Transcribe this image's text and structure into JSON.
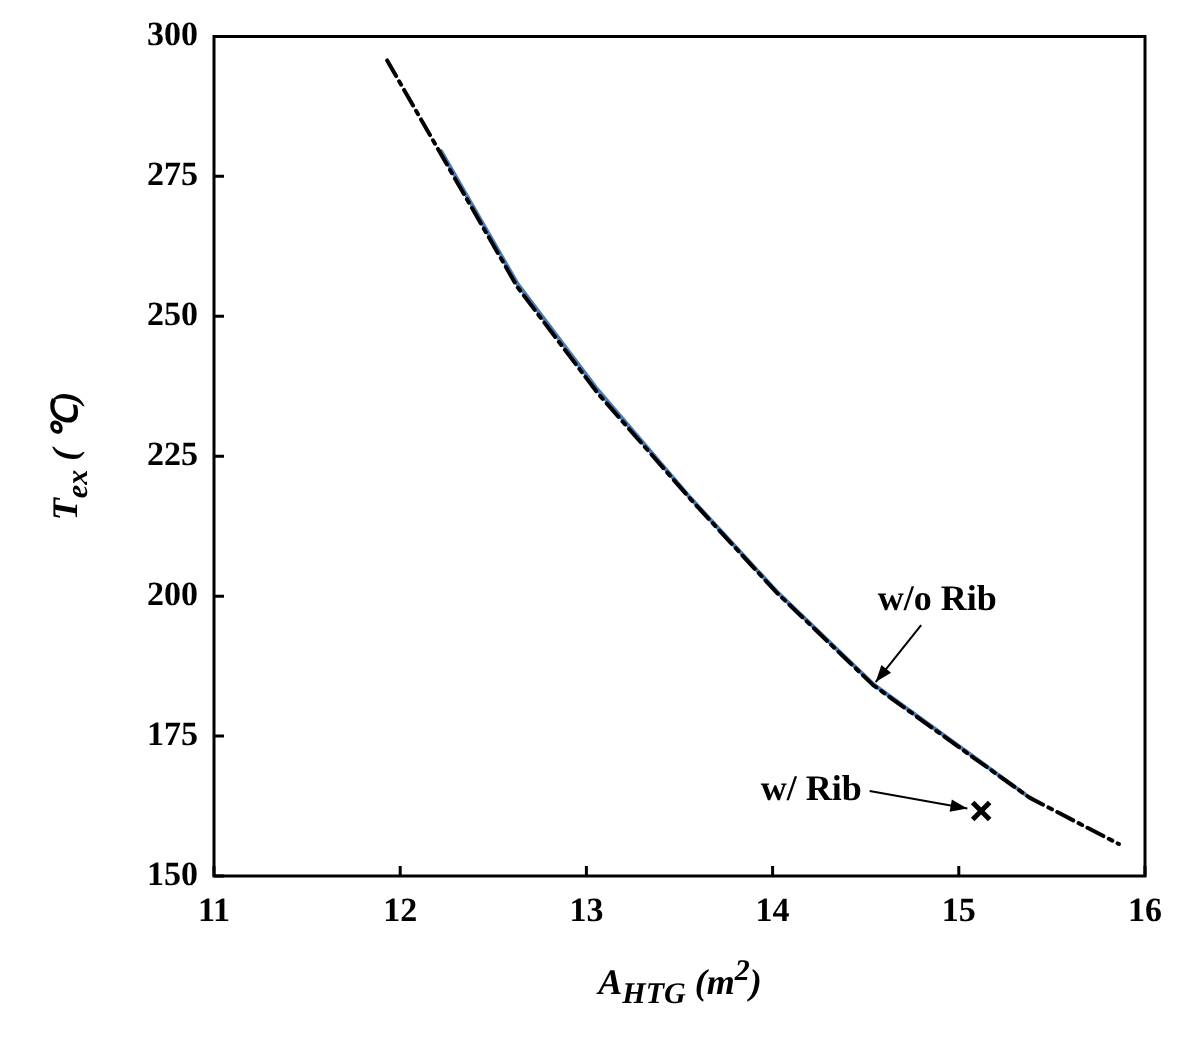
{
  "chart_data": {
    "type": "line",
    "xlabel": "A$_{HTG}$ (m$^{2}$)",
    "ylabel": "T$_{ex}$ ( ℃)",
    "xlim": [
      11,
      16
    ],
    "xticks": [
      11,
      12,
      13,
      14,
      15,
      16
    ],
    "ylim": [
      150,
      300
    ],
    "yticks": [
      150,
      175,
      200,
      225,
      250,
      275,
      300
    ],
    "grid": false,
    "legend": false,
    "series": [
      {
        "color": "#000000",
        "line_style": "dashdot",
        "marker": "none",
        "x": [
          11.93,
          12.22,
          12.63,
          13.06,
          13.56,
          14.02,
          14.54,
          14.98,
          15.38,
          15.86
        ],
        "values": [
          295.7,
          278.9,
          255.2,
          236.3,
          217.3,
          200.7,
          184.1,
          173.5,
          164,
          155.7
        ]
      },
      {
        "color": "#4a7ebb",
        "line_style": "solid",
        "marker": "none",
        "x": [
          12.22,
          12.63,
          13.06,
          13.56,
          14.02,
          14.54,
          14.98,
          15.36
        ],
        "values": [
          279.5,
          255.8,
          236.9,
          217.5,
          200.9,
          184.3,
          173.7,
          164.5
        ]
      },
      {
        "type": "scatter",
        "color": "#000000",
        "marker": "cross",
        "x": [
          15.12
        ],
        "values": [
          161.6
        ]
      }
    ],
    "annotations": [
      {
        "text": "w/o Rib",
        "x": 14.54,
        "y": 184.1
      },
      {
        "text": "w/ Rib",
        "x": 15.12,
        "y": 161.6
      }
    ]
  }
}
